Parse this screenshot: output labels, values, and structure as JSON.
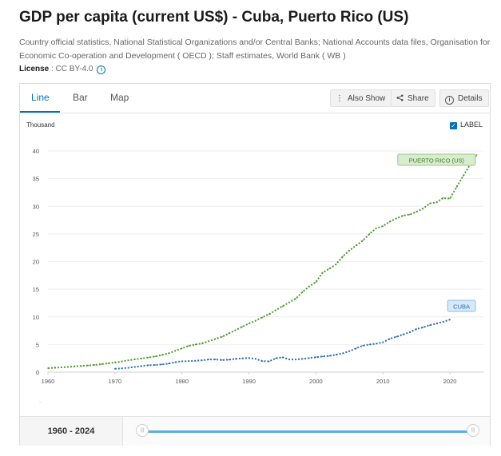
{
  "header": {
    "title": "GDP per capita (current US$) - Cuba, Puerto Rico (US)",
    "subtitle": "Country official statistics, National Statistical Organizations and/or Central Banks; National Accounts data files, Organisation for Economic Co-operation and Development ( OECD ); Staff estimates, World Bank ( WB )",
    "license_label": "License",
    "license_value": " : CC BY-4.0"
  },
  "tabs": [
    {
      "label": "Line",
      "active": true
    },
    {
      "label": "Bar",
      "active": false
    },
    {
      "label": "Map",
      "active": false
    }
  ],
  "toolbar": {
    "also_show_label": "Also Show",
    "share_label": "Share",
    "details_label": "Details"
  },
  "label_toggle": {
    "label": "LABEL",
    "checked": true
  },
  "slider": {
    "range_label": "1960 - 2024",
    "start_year": 1960,
    "end_year": 2024
  },
  "colors": {
    "accent": "#0071bc",
    "puerto_rico_line": "#4c9a2a",
    "cuba_line": "#2b6cb0",
    "puerto_rico_label_bg": "#d8ecd0",
    "cuba_label_bg": "#d6e9f8"
  },
  "chart_data": {
    "type": "line",
    "title": "GDP per capita (current US$) - Cuba, Puerto Rico (US)",
    "ylabel": "Thousand",
    "xlabel": "",
    "xlim": [
      1960,
      2025
    ],
    "ylim": [
      0,
      40
    ],
    "yticks": [
      0,
      5,
      10,
      15,
      20,
      25,
      30,
      35,
      40
    ],
    "xticks": [
      1960,
      1970,
      1980,
      1990,
      2000,
      2010,
      2020
    ],
    "grid": true,
    "series": [
      {
        "name": "PUERTO RICO (US)",
        "color": "#4c9a2a",
        "x": [
          1960,
          1961,
          1962,
          1963,
          1964,
          1965,
          1966,
          1967,
          1968,
          1969,
          1970,
          1971,
          1972,
          1973,
          1974,
          1975,
          1976,
          1977,
          1978,
          1979,
          1980,
          1981,
          1982,
          1983,
          1984,
          1985,
          1986,
          1987,
          1988,
          1989,
          1990,
          1991,
          1992,
          1993,
          1994,
          1995,
          1996,
          1997,
          1998,
          1999,
          2000,
          2001,
          2002,
          2003,
          2004,
          2005,
          2006,
          2007,
          2008,
          2009,
          2010,
          2011,
          2012,
          2013,
          2014,
          2015,
          2016,
          2017,
          2018,
          2019,
          2020,
          2021,
          2022,
          2023,
          2024
        ],
        "values": [
          0.72,
          0.8,
          0.87,
          0.95,
          1.04,
          1.12,
          1.21,
          1.32,
          1.45,
          1.6,
          1.75,
          1.93,
          2.13,
          2.33,
          2.5,
          2.65,
          2.85,
          3.1,
          3.4,
          3.85,
          4.3,
          4.75,
          5.0,
          5.2,
          5.6,
          6.0,
          6.4,
          7.0,
          7.6,
          8.2,
          8.8,
          9.3,
          9.9,
          10.5,
          11.2,
          11.9,
          12.6,
          13.3,
          14.5,
          15.5,
          16.3,
          18.0,
          18.7,
          19.5,
          20.9,
          22.0,
          22.9,
          23.8,
          25.0,
          26.0,
          26.4,
          27.2,
          27.8,
          28.3,
          28.5,
          29.0,
          29.6,
          30.5,
          30.7,
          31.5,
          31.4,
          33.5,
          35.5,
          37.5,
          39.3
        ]
      },
      {
        "name": "CUBA",
        "color": "#2b6cb0",
        "x": [
          1970,
          1971,
          1972,
          1973,
          1974,
          1975,
          1976,
          1977,
          1978,
          1979,
          1980,
          1981,
          1982,
          1983,
          1984,
          1985,
          1986,
          1987,
          1988,
          1989,
          1990,
          1991,
          1992,
          1993,
          1994,
          1995,
          1996,
          1997,
          1998,
          1999,
          2000,
          2001,
          2002,
          2003,
          2004,
          2005,
          2006,
          2007,
          2008,
          2009,
          2010,
          2011,
          2012,
          2013,
          2014,
          2015,
          2016,
          2017,
          2018,
          2019,
          2020
        ],
        "values": [
          0.6,
          0.7,
          0.8,
          0.95,
          1.1,
          1.25,
          1.3,
          1.4,
          1.55,
          1.8,
          1.95,
          2.0,
          2.05,
          2.15,
          2.3,
          2.3,
          2.2,
          2.25,
          2.4,
          2.5,
          2.55,
          2.4,
          2.0,
          1.95,
          2.5,
          2.7,
          2.3,
          2.3,
          2.4,
          2.55,
          2.7,
          2.85,
          2.95,
          3.15,
          3.4,
          3.8,
          4.3,
          4.8,
          5.0,
          5.15,
          5.4,
          6.0,
          6.4,
          6.8,
          7.2,
          7.8,
          8.1,
          8.5,
          8.8,
          9.1,
          9.5
        ]
      }
    ]
  }
}
